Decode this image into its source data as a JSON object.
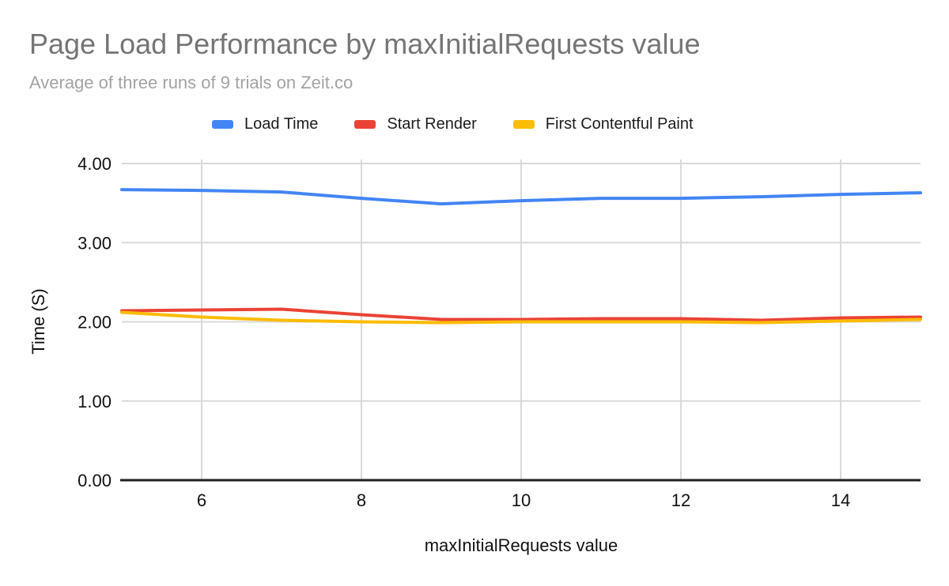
{
  "header": {
    "title": "Page Load Performance by maxInitialRequests value",
    "subtitle": "Average of three runs of 9 trials on Zeit.co"
  },
  "chart_data": {
    "type": "line",
    "title": "Page Load Performance by maxInitialRequests value",
    "subtitle": "Average of three runs of 9 trials on Zeit.co",
    "xlabel": "maxInitialRequests value",
    "ylabel": "Time (S)",
    "x": [
      5,
      6,
      7,
      8,
      9,
      10,
      11,
      12,
      13,
      14,
      15
    ],
    "series": [
      {
        "name": "Load Time",
        "color": "#4285F4",
        "values": [
          3.67,
          3.66,
          3.64,
          3.56,
          3.49,
          3.53,
          3.56,
          3.56,
          3.58,
          3.61,
          3.63
        ]
      },
      {
        "name": "Start Render",
        "color": "#EA4335",
        "values": [
          2.14,
          2.15,
          2.16,
          2.09,
          2.03,
          2.03,
          2.04,
          2.04,
          2.02,
          2.05,
          2.06
        ]
      },
      {
        "name": "First Contentful Paint",
        "color": "#FBBC04",
        "values": [
          2.12,
          2.06,
          2.02,
          2.0,
          1.99,
          2.0,
          2.0,
          2.0,
          1.99,
          2.01,
          2.03
        ]
      }
    ],
    "xlim": [
      5,
      15
    ],
    "ylim": [
      0,
      4
    ],
    "x_ticks": [
      6,
      8,
      10,
      12,
      14
    ],
    "y_ticks": [
      0,
      1,
      2,
      3,
      4
    ],
    "y_tick_labels": [
      "0.00",
      "1.00",
      "2.00",
      "3.00",
      "4.00"
    ],
    "grid": true,
    "grid_color": "#d9d9d9",
    "axis_color": "#212121",
    "legend_position": "top"
  }
}
